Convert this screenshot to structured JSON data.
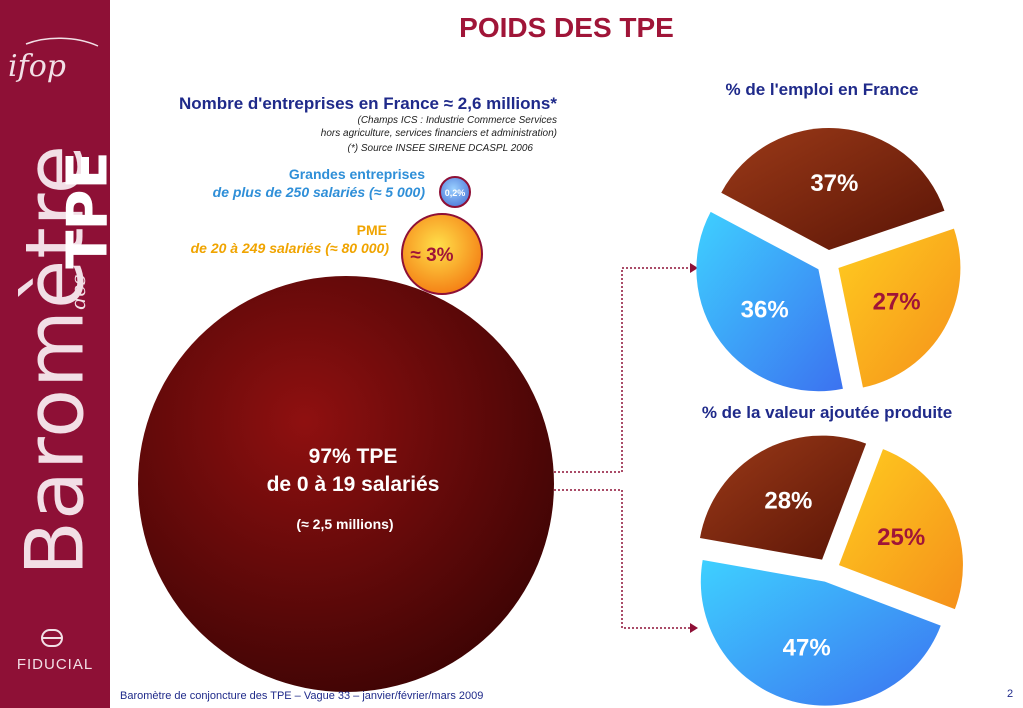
{
  "title": "POIDS DES TPE",
  "sidebar": {
    "logo_text": "ifop",
    "vertical_text": "Baromètre",
    "vertical_des": "des",
    "vertical_tpe": "TPE",
    "brand": "FIDUCIAL"
  },
  "main": {
    "heading": "Nombre d'entreprises en France ≈ 2,6 millions*",
    "note_lines": [
      "(Champs ICS : Industrie Commerce Services",
      "hors agriculture, services financiers et administration)",
      "(*) Source INSEE SIRENE DCASPL 2006"
    ],
    "grandes_label": "Grandes entreprises",
    "grandes_sub": "de plus de 250 salariés (≈ 5 000)",
    "grandes_value": "0,2%",
    "pme_label": "PME",
    "pme_sub": "de 20 à 249 salariés (≈ 80 000)",
    "pme_value": "≈ 3%",
    "tpe_line1": "97% TPE",
    "tpe_line2": "de 0 à 19 salariés",
    "tpe_line3": "(≈ 2,5 millions)"
  },
  "chart_data": [
    {
      "type": "pie",
      "title": "% de l'emploi en France",
      "categories": [
        "TPE",
        "PME",
        "Grandes entreprises"
      ],
      "values": [
        37,
        27,
        36
      ],
      "labels": [
        "37%",
        "27%",
        "36%"
      ],
      "colors": [
        "#7a1e0c",
        "#f6a51a",
        "#2f93f0"
      ]
    },
    {
      "type": "pie",
      "title": "% de la valeur ajoutée produite",
      "categories": [
        "TPE",
        "PME",
        "Grandes entreprises"
      ],
      "values": [
        28,
        25,
        47
      ],
      "labels": [
        "28%",
        "25%",
        "47%"
      ],
      "colors": [
        "#7a1e0c",
        "#f6a51a",
        "#2f93f0"
      ]
    }
  ],
  "footer": "Baromètre de conjoncture des TPE – Vague 33 – janvier/février/mars 2009",
  "page_number": "2"
}
